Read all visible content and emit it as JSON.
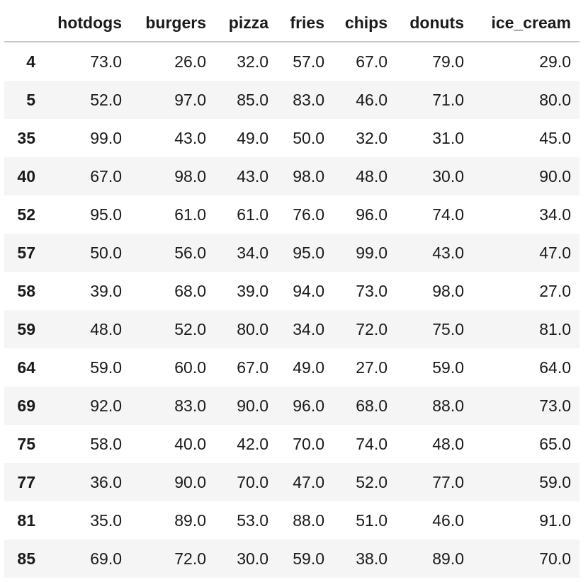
{
  "table": {
    "index_header": "",
    "columns": [
      "hotdogs",
      "burgers",
      "pizza",
      "fries",
      "chips",
      "donuts",
      "ice_cream"
    ],
    "rows": [
      {
        "index": "4",
        "values": [
          "73.0",
          "26.0",
          "32.0",
          "57.0",
          "67.0",
          "79.0",
          "29.0"
        ]
      },
      {
        "index": "5",
        "values": [
          "52.0",
          "97.0",
          "85.0",
          "83.0",
          "46.0",
          "71.0",
          "80.0"
        ]
      },
      {
        "index": "35",
        "values": [
          "99.0",
          "43.0",
          "49.0",
          "50.0",
          "32.0",
          "31.0",
          "45.0"
        ]
      },
      {
        "index": "40",
        "values": [
          "67.0",
          "98.0",
          "43.0",
          "98.0",
          "48.0",
          "30.0",
          "90.0"
        ]
      },
      {
        "index": "52",
        "values": [
          "95.0",
          "61.0",
          "61.0",
          "76.0",
          "96.0",
          "74.0",
          "34.0"
        ]
      },
      {
        "index": "57",
        "values": [
          "50.0",
          "56.0",
          "34.0",
          "95.0",
          "99.0",
          "43.0",
          "47.0"
        ]
      },
      {
        "index": "58",
        "values": [
          "39.0",
          "68.0",
          "39.0",
          "94.0",
          "73.0",
          "98.0",
          "27.0"
        ]
      },
      {
        "index": "59",
        "values": [
          "48.0",
          "52.0",
          "80.0",
          "34.0",
          "72.0",
          "75.0",
          "81.0"
        ]
      },
      {
        "index": "64",
        "values": [
          "59.0",
          "60.0",
          "67.0",
          "49.0",
          "27.0",
          "59.0",
          "64.0"
        ]
      },
      {
        "index": "69",
        "values": [
          "92.0",
          "83.0",
          "90.0",
          "96.0",
          "68.0",
          "88.0",
          "73.0"
        ]
      },
      {
        "index": "75",
        "values": [
          "58.0",
          "40.0",
          "42.0",
          "70.0",
          "74.0",
          "48.0",
          "65.0"
        ]
      },
      {
        "index": "77",
        "values": [
          "36.0",
          "90.0",
          "70.0",
          "47.0",
          "52.0",
          "77.0",
          "59.0"
        ]
      },
      {
        "index": "81",
        "values": [
          "35.0",
          "89.0",
          "53.0",
          "88.0",
          "51.0",
          "46.0",
          "91.0"
        ]
      },
      {
        "index": "85",
        "values": [
          "69.0",
          "72.0",
          "30.0",
          "59.0",
          "38.0",
          "89.0",
          "70.0"
        ]
      }
    ]
  },
  "colors": {
    "stripe": "#f5f5f5",
    "header_rule": "#c8c8c8",
    "text": "#1a1a1a"
  }
}
